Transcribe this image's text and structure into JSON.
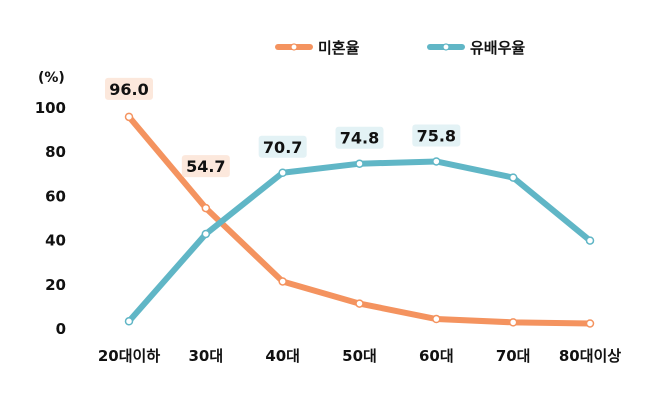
{
  "chart_data": {
    "type": "line",
    "unit_label": "(%)",
    "categories": [
      "20대이하",
      "30대",
      "40대",
      "50대",
      "60대",
      "70대",
      "80대이상"
    ],
    "ylim": [
      0,
      100
    ],
    "yticks": [
      0,
      20,
      40,
      60,
      80,
      100
    ],
    "grid": false,
    "legend_position": "top-right",
    "series": [
      {
        "name": "미혼율",
        "color": "#F4935F",
        "values": [
          96.0,
          54.7,
          21.5,
          11.5,
          4.5,
          3.0,
          2.5
        ],
        "labels": [
          "96.0",
          "54.7",
          "",
          "",
          "",
          "",
          ""
        ],
        "label_bg": "#FCE8DC"
      },
      {
        "name": "유배우율",
        "color": "#60B6C6",
        "values": [
          3.5,
          43.0,
          70.7,
          74.8,
          75.8,
          68.5,
          40.0
        ],
        "labels": [
          "",
          "",
          "70.7",
          "74.8",
          "75.8",
          "",
          ""
        ],
        "label_bg": "#E3F2F5"
      }
    ]
  }
}
